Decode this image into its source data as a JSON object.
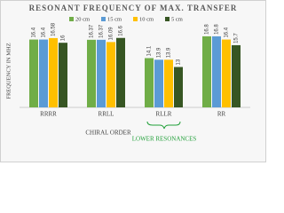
{
  "chart_data": {
    "type": "bar",
    "title": "RESONANT FREQUENCY OF MAX. TRANSFER",
    "y_label": "FREQUENCY IN MHZ",
    "x_label": "CHIRAL ORDER",
    "annotation": "LOWER RESONANCES",
    "categories": [
      "RRRR",
      "RRLL",
      "RLLR",
      "RR"
    ],
    "series": [
      {
        "name": "20 cm",
        "color": "#70ad47",
        "values": [
          16.4,
          16.37,
          14.1,
          16.8
        ]
      },
      {
        "name": "15 cm",
        "color": "#5b9bd5",
        "values": [
          16.4,
          16.37,
          13.9,
          16.8
        ]
      },
      {
        "name": "10 cm",
        "color": "#ffc000",
        "values": [
          16.58,
          16.09,
          13.9,
          16.4
        ]
      },
      {
        "name": "5 cm",
        "color": "#375623",
        "values": [
          16,
          16.6,
          13,
          15.7
        ]
      }
    ],
    "ylim": [
      8,
      18
    ],
    "legend": "top"
  }
}
